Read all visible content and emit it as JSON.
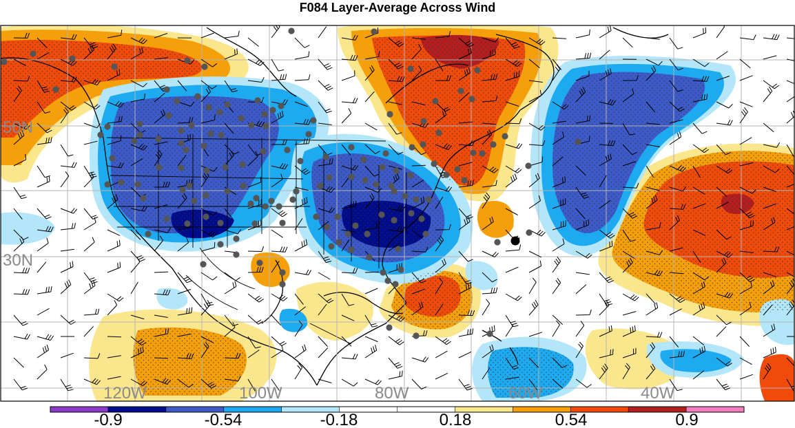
{
  "title": "F084 Layer-Average Across Wind",
  "latitude_labels": [
    "50N",
    "30N"
  ],
  "longitude_labels": [
    "120W",
    "100W",
    "80W",
    "60W",
    "40W"
  ],
  "colorbar": {
    "colors": [
      "#8c3cc8",
      "#000c8c",
      "#3c5ac8",
      "#1eaaf0",
      "#b4e6fa",
      "#ffffff",
      "#ffffff",
      "#fae68c",
      "#f5a00a",
      "#f04b0a",
      "#b41e1e",
      "#f07dbe"
    ],
    "labels": [
      "-0.9",
      "-0.54",
      "-0.18",
      "0.18",
      "0.54",
      "0.9"
    ]
  },
  "palette": {
    "neg_strong": "#000c8c",
    "neg_mid": "#3c5ac8",
    "neg_light": "#1eaaf0",
    "neg_faint": "#b4e6fa",
    "pos_faint": "#fae68c",
    "pos_light": "#f5a00a",
    "pos_mid": "#f04b0a",
    "pos_strong": "#b41e1e",
    "station": "#555555",
    "highlight_station": "#000000"
  }
}
